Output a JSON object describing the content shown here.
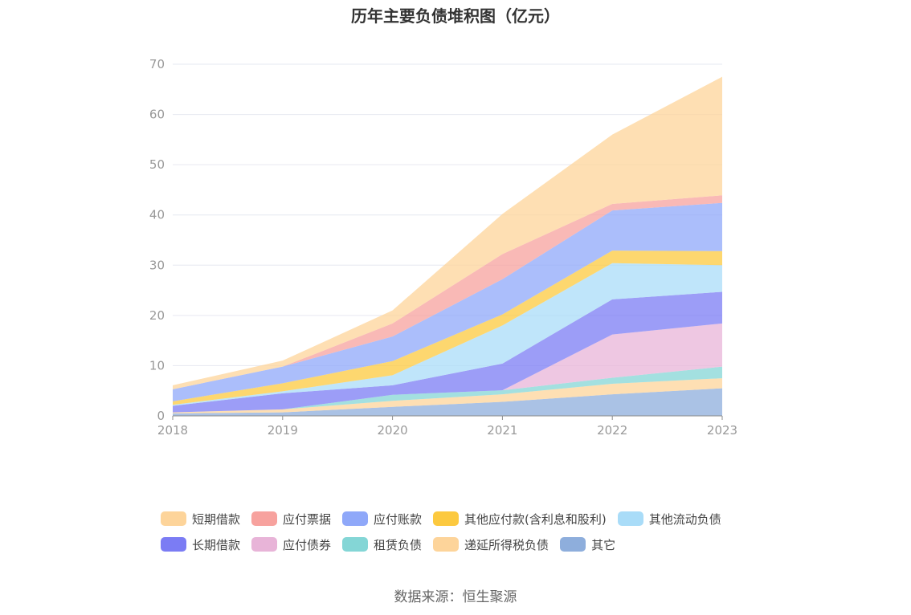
{
  "title": "历年主要负债堆积图（亿元）",
  "source": "数据来源：恒生聚源",
  "chart_data": {
    "type": "area",
    "stacked": true,
    "x": [
      "2018",
      "2019",
      "2020",
      "2021",
      "2022",
      "2023"
    ],
    "ylim": [
      0,
      70
    ],
    "yticks": [
      0,
      10,
      20,
      30,
      40,
      50,
      60,
      70
    ],
    "grid": true,
    "legend_position": "bottom",
    "series": [
      {
        "name": "其它",
        "color": "#8eaedc",
        "values": [
          0.5,
          0.7,
          1.8,
          2.8,
          4.3,
          5.5
        ]
      },
      {
        "name": "递延所得税负债",
        "color": "#fdd49a",
        "values": [
          0.2,
          0.6,
          1.2,
          1.5,
          2.1,
          2.0
        ]
      },
      {
        "name": "租赁负债",
        "color": "#84d6d6",
        "values": [
          0,
          0,
          1.2,
          0.8,
          1.2,
          2.3
        ]
      },
      {
        "name": "应付债券",
        "color": "#e8b4d8",
        "values": [
          0,
          0,
          0,
          0,
          8.6,
          8.6
        ]
      },
      {
        "name": "长期借款",
        "color": "#7b7cf4",
        "values": [
          1.3,
          3.2,
          1.9,
          5.3,
          7.0,
          6.3
        ]
      },
      {
        "name": "其他流动负债",
        "color": "#a9dcf8",
        "values": [
          0.2,
          0.4,
          2.0,
          7.6,
          7.2,
          5.3
        ]
      },
      {
        "name": "其他应付款(含利息和股利)",
        "color": "#fcc93f",
        "values": [
          0.7,
          1.6,
          2.8,
          2.2,
          2.5,
          2.8
        ]
      },
      {
        "name": "应付账款",
        "color": "#8fa8f9",
        "values": [
          2.4,
          3.3,
          4.9,
          7.0,
          8.0,
          9.6
        ]
      },
      {
        "name": "应付票据",
        "color": "#f7a29e",
        "values": [
          0,
          0,
          2.6,
          5.0,
          1.3,
          1.5
        ]
      },
      {
        "name": "短期借款",
        "color": "#fdd49a",
        "values": [
          0.8,
          1.2,
          2.6,
          8.0,
          13.8,
          23.6
        ]
      }
    ]
  },
  "legend_rows": [
    [
      {
        "label": "短期借款",
        "color": "#fdd49a"
      },
      {
        "label": "应付票据",
        "color": "#f7a29e"
      },
      {
        "label": "应付账款",
        "color": "#8fa8f9"
      },
      {
        "label": "其他应付款(含利息和股利)",
        "color": "#fcc93f"
      },
      {
        "label": "其他流动负债",
        "color": "#a9dcf8"
      }
    ],
    [
      {
        "label": "长期借款",
        "color": "#7b7cf4"
      },
      {
        "label": "应付债券",
        "color": "#e8b4d8"
      },
      {
        "label": "租赁负债",
        "color": "#84d6d6"
      },
      {
        "label": "递延所得税负债",
        "color": "#fdd49a"
      },
      {
        "label": "其它",
        "color": "#8eaedc"
      }
    ]
  ]
}
